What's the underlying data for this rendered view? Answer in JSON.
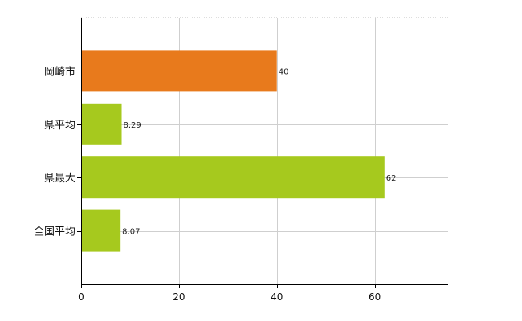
{
  "chart_data": {
    "type": "bar",
    "orientation": "horizontal",
    "categories": [
      "岡崎市",
      "県平均",
      "県最大",
      "全国平均"
    ],
    "values": [
      40,
      8.29,
      62,
      8.07
    ],
    "value_labels": [
      "40",
      "8.29",
      "62",
      "8.07"
    ],
    "bar_colors": [
      "#e87a1c",
      "#a6c91e",
      "#a6c91e",
      "#a6c91e"
    ],
    "xlim": [
      0,
      75
    ],
    "x_ticks": [
      0,
      20,
      40,
      60
    ],
    "grid": true,
    "title": "",
    "xlabel": "",
    "ylabel": ""
  }
}
